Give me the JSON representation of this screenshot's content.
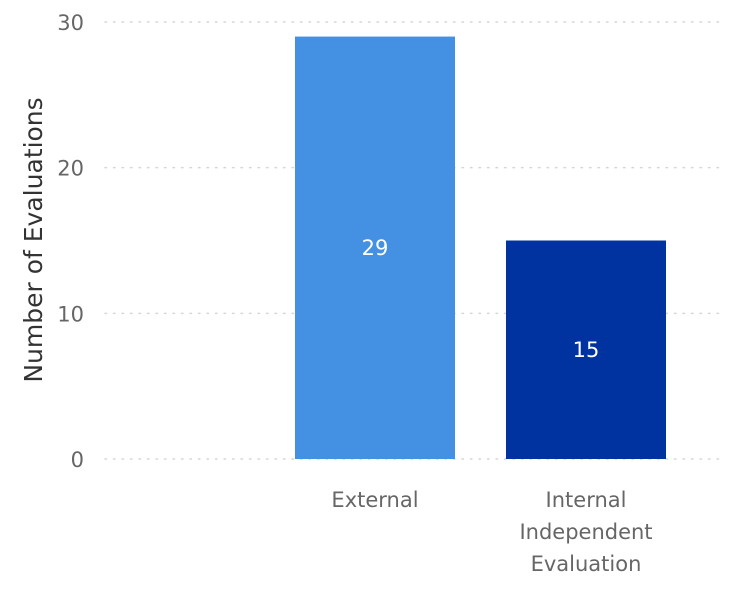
{
  "chart_data": {
    "type": "bar",
    "title": "",
    "xlabel": "",
    "ylabel": "Number of Evaluations",
    "ylim": [
      0,
      30
    ],
    "yticks": [
      0,
      10,
      20,
      30
    ],
    "grid": true,
    "categories": [
      [
        "External"
      ],
      [
        "Internal",
        "Independent",
        "Evaluation"
      ]
    ],
    "values": [
      29,
      15
    ],
    "colors": [
      "#4490E2",
      "#0033A0"
    ],
    "data_labels": [
      "29",
      "15"
    ]
  },
  "style": {
    "grid_color": "#d6d6d6",
    "tick_label_color": "#666666",
    "axis_title_color": "#333333",
    "data_label_color": "#ffffff"
  }
}
